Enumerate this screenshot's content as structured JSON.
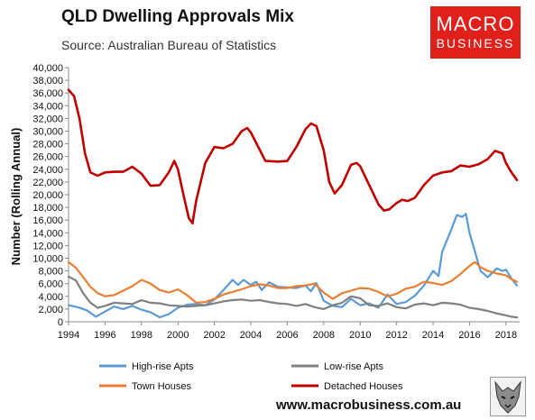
{
  "header": {
    "title": "QLD Dwelling Approvals Mix",
    "subtitle": "Source: Australian Bureau of Statistics"
  },
  "brand": {
    "line1": "MACRO",
    "line2": "BUSINESS",
    "color": "#e0201b",
    "icon": "wolf-logo-icon"
  },
  "footer": {
    "url": "www.macrobusiness.com.au"
  },
  "chart_data": {
    "type": "line",
    "ylabel": "Number (Rolling Annual)",
    "xlabel": "",
    "xlim": [
      1994,
      2018.75
    ],
    "ylim": [
      0,
      40000
    ],
    "grid": false,
    "legend_position": "bottom",
    "x_ticks": [
      "1994",
      "1996",
      "1998",
      "2000",
      "2002",
      "2004",
      "2006",
      "2008",
      "2010",
      "2012",
      "2014",
      "2016",
      "2018"
    ],
    "y_ticks": [
      "0",
      "2,000",
      "4,000",
      "6,000",
      "8,000",
      "10,000",
      "12,000",
      "14,000",
      "16,000",
      "18,000",
      "20,000",
      "22,000",
      "24,000",
      "26,000",
      "28,000",
      "30,000",
      "32,000",
      "34,000",
      "36,000",
      "38,000",
      "40,000"
    ],
    "series": [
      {
        "name": "High-rise Apts",
        "color": "#5b9bd5",
        "points": [
          [
            1994,
            2600
          ],
          [
            1994.5,
            2300
          ],
          [
            1995,
            1800
          ],
          [
            1995.5,
            800
          ],
          [
            1996,
            1600
          ],
          [
            1996.5,
            2400
          ],
          [
            1997,
            2000
          ],
          [
            1997.5,
            2500
          ],
          [
            1998,
            1900
          ],
          [
            1998.5,
            1500
          ],
          [
            1999,
            700
          ],
          [
            1999.5,
            1200
          ],
          [
            2000,
            2200
          ],
          [
            2000.5,
            2700
          ],
          [
            2001,
            2800
          ],
          [
            2001.5,
            2600
          ],
          [
            2002,
            3500
          ],
          [
            2002.5,
            5000
          ],
          [
            2003,
            6600
          ],
          [
            2003.3,
            5800
          ],
          [
            2003.6,
            6600
          ],
          [
            2004,
            5800
          ],
          [
            2004.3,
            6300
          ],
          [
            2004.6,
            5000
          ],
          [
            2005,
            6200
          ],
          [
            2005.5,
            5500
          ],
          [
            2006,
            5400
          ],
          [
            2006.5,
            5300
          ],
          [
            2007,
            5700
          ],
          [
            2007.3,
            4800
          ],
          [
            2007.6,
            6100
          ],
          [
            2008,
            3300
          ],
          [
            2008.5,
            2500
          ],
          [
            2009,
            2300
          ],
          [
            2009.5,
            3600
          ],
          [
            2010,
            2600
          ],
          [
            2010.5,
            2900
          ],
          [
            2011,
            2200
          ],
          [
            2011.5,
            4300
          ],
          [
            2012,
            2800
          ],
          [
            2012.5,
            3100
          ],
          [
            2013,
            4100
          ],
          [
            2013.5,
            5700
          ],
          [
            2014,
            8000
          ],
          [
            2014.3,
            7200
          ],
          [
            2014.5,
            11000
          ],
          [
            2015,
            14500
          ],
          [
            2015.3,
            16800
          ],
          [
            2015.6,
            16500
          ],
          [
            2015.8,
            17000
          ],
          [
            2016,
            14000
          ],
          [
            2016.3,
            11000
          ],
          [
            2016.6,
            8000
          ],
          [
            2017,
            7000
          ],
          [
            2017.5,
            8400
          ],
          [
            2017.8,
            8000
          ],
          [
            2018,
            8200
          ],
          [
            2018.3,
            6800
          ],
          [
            2018.6,
            5700
          ]
        ]
      },
      {
        "name": "Low-rise Apts",
        "color": "#808080",
        "points": [
          [
            1994,
            7100
          ],
          [
            1994.4,
            6500
          ],
          [
            1994.8,
            4500
          ],
          [
            1995.2,
            3000
          ],
          [
            1995.6,
            2200
          ],
          [
            1996,
            2500
          ],
          [
            1996.5,
            3000
          ],
          [
            1997,
            2900
          ],
          [
            1997.5,
            2800
          ],
          [
            1998,
            3400
          ],
          [
            1998.5,
            3000
          ],
          [
            1999,
            2900
          ],
          [
            1999.5,
            2600
          ],
          [
            2000,
            2500
          ],
          [
            2000.5,
            2400
          ],
          [
            2001,
            2500
          ],
          [
            2001.5,
            2600
          ],
          [
            2002,
            2900
          ],
          [
            2002.5,
            3200
          ],
          [
            2003,
            3400
          ],
          [
            2003.5,
            3500
          ],
          [
            2004,
            3300
          ],
          [
            2004.5,
            3400
          ],
          [
            2005,
            3100
          ],
          [
            2005.5,
            2900
          ],
          [
            2006,
            2800
          ],
          [
            2006.5,
            2500
          ],
          [
            2007,
            2800
          ],
          [
            2007.5,
            2300
          ],
          [
            2008,
            2000
          ],
          [
            2008.5,
            2600
          ],
          [
            2009,
            3000
          ],
          [
            2009.5,
            4000
          ],
          [
            2010,
            3700
          ],
          [
            2010.5,
            2600
          ],
          [
            2011,
            2500
          ],
          [
            2011.5,
            2900
          ],
          [
            2012,
            2300
          ],
          [
            2012.5,
            2100
          ],
          [
            2013,
            2700
          ],
          [
            2013.5,
            2900
          ],
          [
            2014,
            2600
          ],
          [
            2014.5,
            3000
          ],
          [
            2015,
            2900
          ],
          [
            2015.5,
            2700
          ],
          [
            2016,
            2200
          ],
          [
            2016.5,
            2000
          ],
          [
            2017,
            1700
          ],
          [
            2017.5,
            1300
          ],
          [
            2018,
            1000
          ],
          [
            2018.3,
            800
          ],
          [
            2018.6,
            700
          ]
        ]
      },
      {
        "name": "Town Houses",
        "color": "#ed7d31",
        "points": [
          [
            1994,
            9400
          ],
          [
            1994.4,
            8500
          ],
          [
            1994.8,
            7000
          ],
          [
            1995.2,
            5500
          ],
          [
            1995.6,
            4500
          ],
          [
            1996,
            4000
          ],
          [
            1996.5,
            4200
          ],
          [
            1997,
            4900
          ],
          [
            1997.5,
            5600
          ],
          [
            1998,
            6600
          ],
          [
            1998.5,
            6000
          ],
          [
            1999,
            5000
          ],
          [
            1999.5,
            4600
          ],
          [
            2000,
            5100
          ],
          [
            2000.5,
            4200
          ],
          [
            2001,
            3000
          ],
          [
            2001.5,
            3100
          ],
          [
            2002,
            3600
          ],
          [
            2002.5,
            4300
          ],
          [
            2003,
            4700
          ],
          [
            2003.5,
            5100
          ],
          [
            2004,
            5600
          ],
          [
            2004.5,
            5900
          ],
          [
            2005,
            5700
          ],
          [
            2005.5,
            5300
          ],
          [
            2006,
            5300
          ],
          [
            2006.5,
            5600
          ],
          [
            2007,
            5700
          ],
          [
            2007.5,
            6000
          ],
          [
            2008,
            4600
          ],
          [
            2008.5,
            3600
          ],
          [
            2009,
            4500
          ],
          [
            2009.5,
            4900
          ],
          [
            2010,
            5300
          ],
          [
            2010.5,
            5200
          ],
          [
            2011,
            4700
          ],
          [
            2011.5,
            4000
          ],
          [
            2012,
            4400
          ],
          [
            2012.5,
            5200
          ],
          [
            2013,
            5500
          ],
          [
            2013.5,
            6300
          ],
          [
            2014,
            6100
          ],
          [
            2014.5,
            5800
          ],
          [
            2015,
            6400
          ],
          [
            2015.5,
            7500
          ],
          [
            2016,
            8800
          ],
          [
            2016.3,
            9400
          ],
          [
            2016.6,
            8600
          ],
          [
            2017,
            8000
          ],
          [
            2017.5,
            7600
          ],
          [
            2018,
            7300
          ],
          [
            2018.3,
            6700
          ],
          [
            2018.6,
            6300
          ]
        ]
      },
      {
        "name": "Detached Houses",
        "color": "#c00000",
        "points": [
          [
            1994,
            36500
          ],
          [
            1994.3,
            35500
          ],
          [
            1994.6,
            32000
          ],
          [
            1994.9,
            26500
          ],
          [
            1995.2,
            23500
          ],
          [
            1995.6,
            23000
          ],
          [
            1996,
            23500
          ],
          [
            1996.5,
            23600
          ],
          [
            1997,
            23600
          ],
          [
            1997.5,
            24400
          ],
          [
            1998,
            23300
          ],
          [
            1998.5,
            21400
          ],
          [
            1999,
            21500
          ],
          [
            1999.5,
            23500
          ],
          [
            1999.8,
            25300
          ],
          [
            2000,
            24000
          ],
          [
            2000.3,
            20000
          ],
          [
            2000.6,
            16300
          ],
          [
            2000.8,
            15500
          ],
          [
            2001,
            19000
          ],
          [
            2001.5,
            25000
          ],
          [
            2002,
            27500
          ],
          [
            2002.5,
            27300
          ],
          [
            2003,
            28000
          ],
          [
            2003.5,
            30000
          ],
          [
            2003.8,
            30500
          ],
          [
            2004,
            29800
          ],
          [
            2004.5,
            27000
          ],
          [
            2004.8,
            25300
          ],
          [
            2005.5,
            25200
          ],
          [
            2006,
            25300
          ],
          [
            2006.5,
            27500
          ],
          [
            2007,
            30300
          ],
          [
            2007.3,
            31200
          ],
          [
            2007.6,
            30800
          ],
          [
            2008,
            27000
          ],
          [
            2008.3,
            22000
          ],
          [
            2008.6,
            20200
          ],
          [
            2009,
            21500
          ],
          [
            2009.5,
            24700
          ],
          [
            2009.8,
            25000
          ],
          [
            2010,
            24500
          ],
          [
            2010.5,
            21500
          ],
          [
            2011,
            18500
          ],
          [
            2011.3,
            17500
          ],
          [
            2011.6,
            17700
          ],
          [
            2012,
            18700
          ],
          [
            2012.3,
            19200
          ],
          [
            2012.6,
            19000
          ],
          [
            2013,
            19500
          ],
          [
            2013.5,
            21500
          ],
          [
            2014,
            23000
          ],
          [
            2014.5,
            23500
          ],
          [
            2015,
            23700
          ],
          [
            2015.5,
            24600
          ],
          [
            2016,
            24400
          ],
          [
            2016.5,
            24800
          ],
          [
            2017,
            25600
          ],
          [
            2017.4,
            26900
          ],
          [
            2017.8,
            26500
          ],
          [
            2018,
            25000
          ],
          [
            2018.3,
            23500
          ],
          [
            2018.6,
            22300
          ]
        ]
      }
    ]
  }
}
